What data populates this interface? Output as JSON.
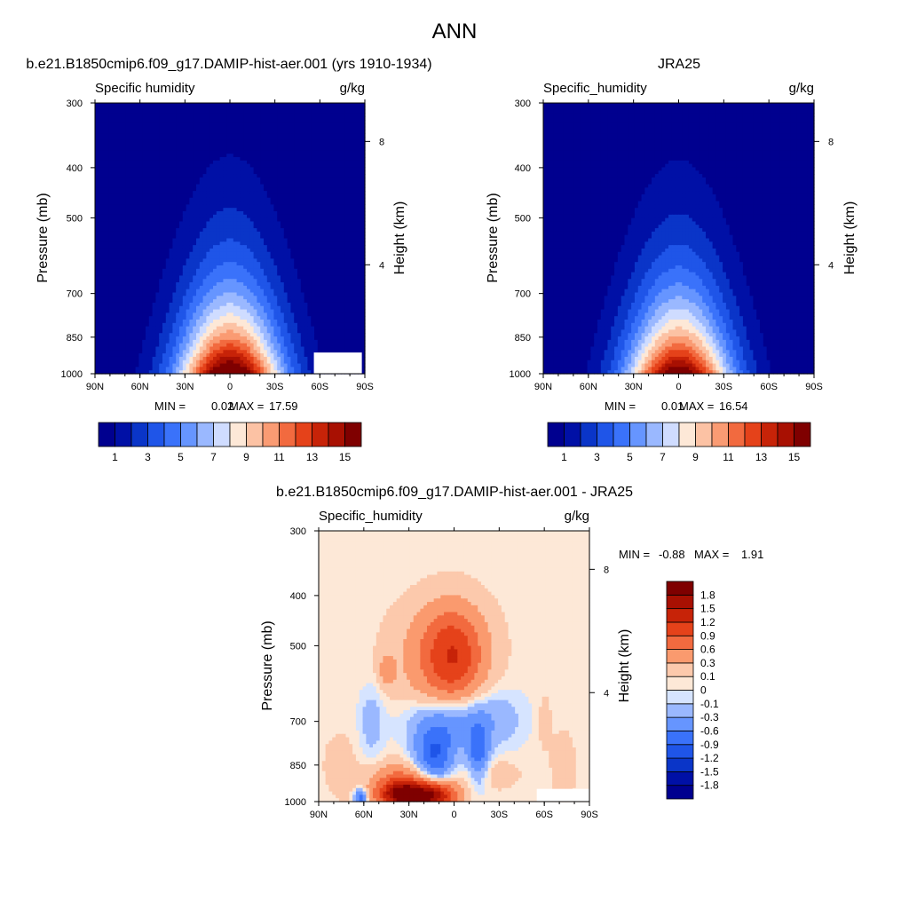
{
  "figure": {
    "title": "ANN",
    "colors": {
      "low_fill": "#00008f",
      "missing_fill": "#ffffff"
    }
  },
  "chart_data": [
    {
      "type": "heatmap",
      "name": "model",
      "title": "b.e21.B1850cmip6.f09_g17.DAMIP-hist-aer.001 (yrs 1910-1934)",
      "left_string": "Specific humidity",
      "right_string": "g/kg",
      "xlabel": "",
      "ylabel": "Pressure (mb)",
      "ylabel_right": "Height (km)",
      "x_ticks": [
        "90N",
        "60N",
        "30N",
        "0",
        "30S",
        "60S",
        "90S"
      ],
      "x_range": [
        90,
        -90
      ],
      "y_ticks": [
        300,
        400,
        500,
        700,
        850,
        1000
      ],
      "y_range": [
        1000,
        300
      ],
      "y_right_ticks": [
        {
          "km": 8,
          "label": "8",
          "p": 356
        },
        {
          "km": 4,
          "label": "4",
          "p": 616
        }
      ],
      "stats": {
        "min_label": "MIN =",
        "min": "0.02",
        "max_label": "MAX =",
        "max": "17.59"
      },
      "peak_value": 17.6,
      "field_levels": [
        1,
        2,
        3,
        4,
        5,
        6,
        7,
        8,
        9,
        10,
        11,
        12,
        13,
        14,
        15
      ],
      "field_colors": [
        "#00008f",
        "#0010a6",
        "#0a35c8",
        "#1f55e8",
        "#3a72fa",
        "#6695ff",
        "#9ab8ff",
        "#cfdcff",
        "#fde8d7",
        "#fcc2a4",
        "#fa9b73",
        "#f26a3f",
        "#e5421a",
        "#c72308",
        "#a81002",
        "#7f0000"
      ],
      "missing_regions": [
        {
          "lat": [
            -56,
            -88
          ],
          "p": [
            910,
            1000
          ]
        }
      ],
      "colorbar": {
        "orientation": "horizontal",
        "colors": [
          "#00008f",
          "#0010a6",
          "#0a35c8",
          "#1f55e8",
          "#3a72fa",
          "#6695ff",
          "#9ab8ff",
          "#cfdcff",
          "#fde8d7",
          "#fcc2a4",
          "#fa9b73",
          "#f26a3f",
          "#e5421a",
          "#c72308",
          "#a81002",
          "#7f0000"
        ],
        "labels": [
          "1",
          "3",
          "5",
          "7",
          "9",
          "11",
          "13",
          "15"
        ],
        "label_positions": [
          1,
          3,
          5,
          7,
          9,
          11,
          13,
          15
        ]
      }
    },
    {
      "type": "heatmap",
      "name": "obs",
      "title": "JRA25",
      "left_string": "Specific_humidity",
      "right_string": "g/kg",
      "xlabel": "",
      "ylabel": "Pressure (mb)",
      "ylabel_right": "Height (km)",
      "x_ticks": [
        "90N",
        "60N",
        "30N",
        "0",
        "30S",
        "60S",
        "90S"
      ],
      "x_range": [
        90,
        -90
      ],
      "y_ticks": [
        300,
        400,
        500,
        700,
        850,
        1000
      ],
      "y_range": [
        1000,
        300
      ],
      "y_right_ticks": [
        {
          "km": 8,
          "label": "8",
          "p": 356
        },
        {
          "km": 4,
          "label": "4",
          "p": 616
        }
      ],
      "stats": {
        "min_label": "MIN =",
        "min": "0.01",
        "max_label": "MAX =",
        "max": "16.54"
      },
      "peak_value": 16.5,
      "field_levels": [
        1,
        2,
        3,
        4,
        5,
        6,
        7,
        8,
        9,
        10,
        11,
        12,
        13,
        14,
        15
      ],
      "field_colors": [
        "#00008f",
        "#0010a6",
        "#0a35c8",
        "#1f55e8",
        "#3a72fa",
        "#6695ff",
        "#9ab8ff",
        "#cfdcff",
        "#fde8d7",
        "#fcc2a4",
        "#fa9b73",
        "#f26a3f",
        "#e5421a",
        "#c72308",
        "#a81002",
        "#7f0000"
      ],
      "missing_regions": [],
      "colorbar": {
        "orientation": "horizontal",
        "colors": [
          "#00008f",
          "#0010a6",
          "#0a35c8",
          "#1f55e8",
          "#3a72fa",
          "#6695ff",
          "#9ab8ff",
          "#cfdcff",
          "#fde8d7",
          "#fcc2a4",
          "#fa9b73",
          "#f26a3f",
          "#e5421a",
          "#c72308",
          "#a81002",
          "#7f0000"
        ],
        "labels": [
          "1",
          "3",
          "5",
          "7",
          "9",
          "11",
          "13",
          "15"
        ],
        "label_positions": [
          1,
          3,
          5,
          7,
          9,
          11,
          13,
          15
        ]
      }
    },
    {
      "type": "heatmap",
      "name": "diff",
      "title": "b.e21.B1850cmip6.f09_g17.DAMIP-hist-aer.001 - JRA25",
      "left_string": "Specific_humidity",
      "right_string": "g/kg",
      "xlabel": "",
      "ylabel": "Pressure (mb)",
      "ylabel_right": "Height (km)",
      "x_ticks": [
        "90N",
        "60N",
        "30N",
        "0",
        "30S",
        "60S",
        "90S"
      ],
      "x_range": [
        90,
        -90
      ],
      "y_ticks": [
        300,
        400,
        500,
        700,
        850,
        1000
      ],
      "y_range": [
        1000,
        300
      ],
      "y_right_ticks": [
        {
          "km": 8,
          "label": "8",
          "p": 356
        },
        {
          "km": 4,
          "label": "4",
          "p": 616
        }
      ],
      "stats": {
        "min_label": "MIN =",
        "min": "-0.88",
        "max_label": "MAX =",
        "max": "1.91"
      },
      "field_levels": [
        -1.8,
        -1.5,
        -1.2,
        -0.9,
        -0.6,
        -0.3,
        -0.1,
        0,
        0.1,
        0.3,
        0.6,
        0.9,
        1.2,
        1.5,
        1.8
      ],
      "field_colors": [
        "#00008f",
        "#0010a6",
        "#0a35c8",
        "#1f55e8",
        "#3a72fa",
        "#6695ff",
        "#9ab8ff",
        "#d6e4ff",
        "#fde8d7",
        "#fcc9ac",
        "#fa9a6e",
        "#f26a3f",
        "#e5421a",
        "#c72308",
        "#a81002",
        "#7f0000"
      ],
      "background_value": 0.05,
      "missing_regions": [
        {
          "lat": [
            -55,
            -90
          ],
          "p": [
            945,
            1000
          ]
        }
      ],
      "features": [
        {
          "kind": "positive",
          "lat": 0,
          "p": 530,
          "amp": 0.85,
          "sx": 14,
          "sy": 0.15
        },
        {
          "kind": "positive",
          "lat": 13,
          "p": 565,
          "amp": 0.25,
          "sx": 22,
          "sy": 0.14
        },
        {
          "kind": "positive",
          "lat": 8,
          "p": 470,
          "amp": 0.25,
          "sx": 20,
          "sy": 0.12
        },
        {
          "kind": "positive",
          "lat": 45,
          "p": 560,
          "amp": 0.35,
          "sx": 4,
          "sy": 0.05
        },
        {
          "kind": "negative",
          "lat": 13,
          "p": 820,
          "amp": -0.95,
          "sx": 9,
          "sy": 0.09
        },
        {
          "kind": "negative",
          "lat": -16,
          "p": 810,
          "amp": -0.8,
          "sx": 5,
          "sy": 0.09
        },
        {
          "kind": "negative",
          "lat": 5,
          "p": 700,
          "amp": -0.55,
          "sx": 18,
          "sy": 0.08
        },
        {
          "kind": "negative",
          "lat": -25,
          "p": 690,
          "amp": -0.25,
          "sx": 16,
          "sy": 0.1
        },
        {
          "kind": "negative",
          "lat": 55,
          "p": 700,
          "amp": -0.25,
          "sx": 6,
          "sy": 0.12
        },
        {
          "kind": "negative",
          "lat": 62,
          "p": 985,
          "amp": -0.9,
          "sx": 3,
          "sy": 0.03
        },
        {
          "kind": "positive",
          "lat": 30,
          "p": 975,
          "amp": 1.9,
          "sx": 13,
          "sy": 0.04
        },
        {
          "kind": "positive",
          "lat": 10,
          "p": 975,
          "amp": 1.0,
          "sx": 10,
          "sy": 0.05
        },
        {
          "kind": "positive",
          "lat": 35,
          "p": 920,
          "amp": 0.7,
          "sx": 14,
          "sy": 0.06
        },
        {
          "kind": "positive",
          "lat": -22,
          "p": 880,
          "amp": 0.2,
          "sx": 14,
          "sy": 0.05
        },
        {
          "kind": "positive",
          "lat": -73,
          "p": 860,
          "amp": 0.2,
          "sx": 5,
          "sy": 0.1
        },
        {
          "kind": "positive",
          "lat": -60,
          "p": 700,
          "amp": 0.12,
          "sx": 4,
          "sy": 0.1
        },
        {
          "kind": "positive",
          "lat": 75,
          "p": 850,
          "amp": 0.1,
          "sx": 10,
          "sy": 0.12
        }
      ],
      "colorbar": {
        "orientation": "vertical",
        "colors": [
          "#00008f",
          "#0010a6",
          "#0a35c8",
          "#1f55e8",
          "#3a72fa",
          "#6695ff",
          "#9ab8ff",
          "#d6e4ff",
          "#fde8d7",
          "#fcc9ac",
          "#fa9a6e",
          "#f26a3f",
          "#e5421a",
          "#c72308",
          "#a81002",
          "#7f0000"
        ],
        "labels": [
          "1.8",
          "1.5",
          "1.2",
          "0.9",
          "0.6",
          "0.3",
          "0.1",
          "0",
          "-0.1",
          "-0.3",
          "-0.6",
          "-0.9",
          "-1.2",
          "-1.5",
          "-1.8"
        ]
      }
    }
  ]
}
